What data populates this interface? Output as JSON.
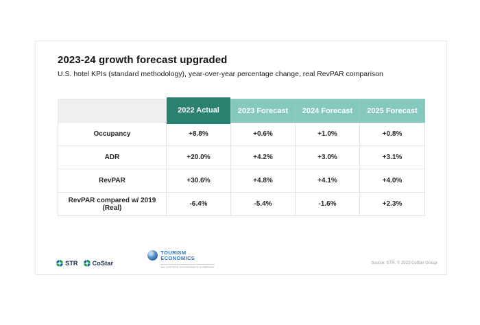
{
  "slide": {
    "title": "2023-24 growth forecast upgraded",
    "subtitle": "U.S. hotel KPIs (standard methodology), year-over-year percentage change, real RevPAR comparison"
  },
  "chart_data": {
    "type": "table",
    "title": "2023-24 growth forecast upgraded",
    "subtitle": "U.S. hotel KPIs (standard methodology), year-over-year percentage change, real RevPAR comparison",
    "columns": [
      "2022 Actual",
      "2023 Forecast",
      "2024 Forecast",
      "2025 Forecast"
    ],
    "rows": [
      {
        "label": "Occupancy",
        "values": [
          "+8.8%",
          "+0.6%",
          "+1.0%",
          "+0.8%"
        ]
      },
      {
        "label": "ADR",
        "values": [
          "+20.0%",
          "+4.2%",
          "+3.0%",
          "+3.1%"
        ]
      },
      {
        "label": "RevPAR",
        "values": [
          "+30.6%",
          "+4.8%",
          "+4.1%",
          "+4.0%"
        ]
      },
      {
        "label": "RevPAR compared w/ 2019 (Real)",
        "values": [
          "-6.4%",
          "-5.4%",
          "-1.6%",
          "+2.3%"
        ]
      }
    ],
    "highlight_column": "2022 Actual",
    "layout": {
      "highlight_color": "#2b8170",
      "forecast_color": "#84c8be",
      "corner_color": "#efefef"
    }
  },
  "footer": {
    "str_label": "STR",
    "costar_label": "CoStar",
    "tourism_line1": "TOURISM",
    "tourism_line2": "ECONOMICS",
    "tourism_tagline": "AN OXFORD ECONOMICS COMPANY",
    "source": "Source: STR. © 2023 CoStar Group"
  },
  "colors": {
    "accent_dark_teal": "#2b8170",
    "accent_light_teal": "#84c8be",
    "corner_gray": "#efefef",
    "logo_navy": "#13284a",
    "logo_blue": "#2e75b6",
    "logo_green": "#0b9e4d"
  }
}
